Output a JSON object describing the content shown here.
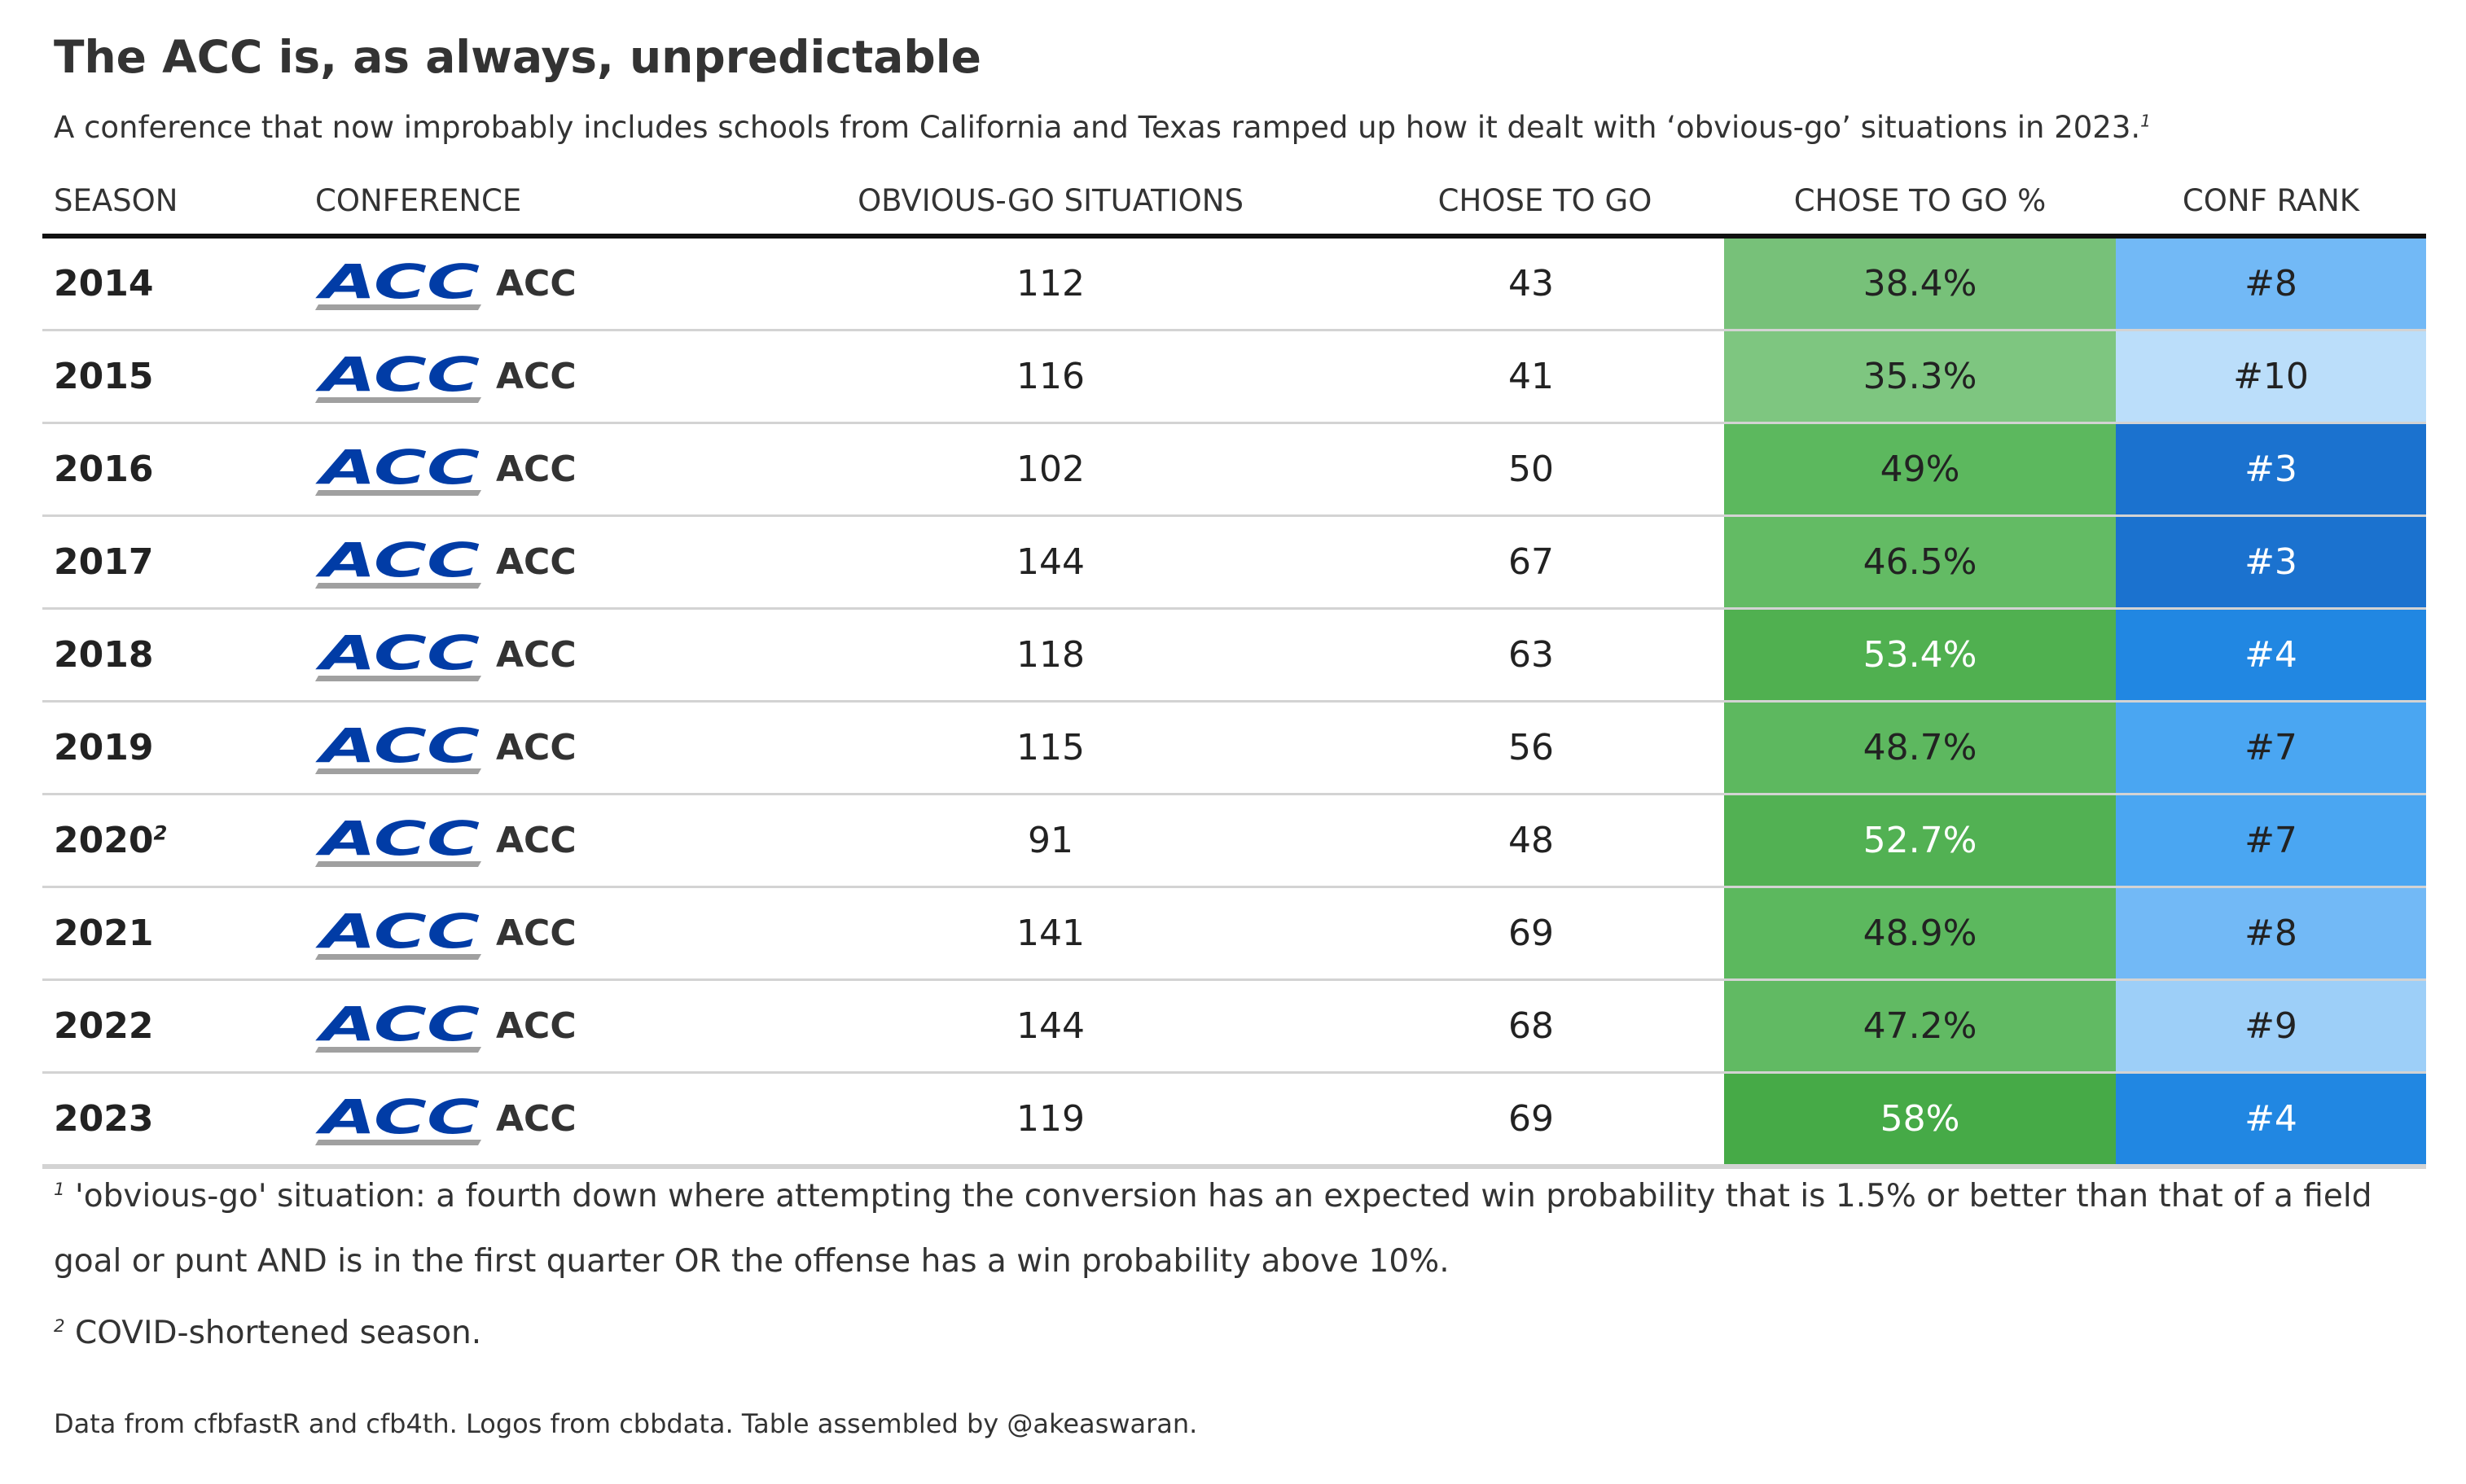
{
  "title": "The ACC is, as always, unpredictable",
  "subtitle": "A conference that now improbably includes schools from California and Texas ramped up how it dealt with ‘obvious-go’ situations in 2023.",
  "subtitle_footnote": "1",
  "columns": {
    "season": "SEASON",
    "conference": "CONFERENCE",
    "situations": "OBVIOUS-GO SITUATIONS",
    "chose": "CHOSE TO GO",
    "pct": "CHOSE TO GO %",
    "rank": "CONF RANK"
  },
  "rows": [
    {
      "season": "2014",
      "footnote": "",
      "conference": "ACC",
      "logo_text": "ACC",
      "situations": "112",
      "chose": "43",
      "pct": "38.4%",
      "rank": "#8",
      "pct_value": 38.4,
      "rank_value": 8,
      "pct_bg": "#77c179",
      "pct_fg": "#222222",
      "rank_bg": "#72b9f6",
      "rank_fg": "#222222"
    },
    {
      "season": "2015",
      "footnote": "",
      "conference": "ACC",
      "logo_text": "ACC",
      "situations": "116",
      "chose": "41",
      "pct": "35.3%",
      "rank": "#10",
      "pct_value": 35.3,
      "rank_value": 10,
      "pct_bg": "#7ec680",
      "pct_fg": "#222222",
      "rank_bg": "#bbdefa",
      "rank_fg": "#222222"
    },
    {
      "season": "2016",
      "footnote": "",
      "conference": "ACC",
      "logo_text": "ACC",
      "situations": "102",
      "chose": "50",
      "pct": "49%",
      "rank": "#3",
      "pct_value": 49,
      "rank_value": 3,
      "pct_bg": "#5cb85e",
      "pct_fg": "#222222",
      "rank_bg": "#1b72cf",
      "rank_fg": "#ffffff"
    },
    {
      "season": "2017",
      "footnote": "",
      "conference": "ACC",
      "logo_text": "ACC",
      "situations": "144",
      "chose": "67",
      "pct": "46.5%",
      "rank": "#3",
      "pct_value": 46.5,
      "rank_value": 3,
      "pct_bg": "#63bb64",
      "pct_fg": "#222222",
      "rank_bg": "#1b72cf",
      "rank_fg": "#ffffff"
    },
    {
      "season": "2018",
      "footnote": "",
      "conference": "ACC",
      "logo_text": "ACC",
      "situations": "118",
      "chose": "63",
      "pct": "53.4%",
      "rank": "#4",
      "pct_value": 53.4,
      "rank_value": 4,
      "pct_bg": "#50b050",
      "pct_fg": "#ffffff",
      "rank_bg": "#2187e2",
      "rank_fg": "#ffffff"
    },
    {
      "season": "2019",
      "footnote": "",
      "conference": "ACC",
      "logo_text": "ACC",
      "situations": "115",
      "chose": "56",
      "pct": "48.7%",
      "rank": "#7",
      "pct_value": 48.7,
      "rank_value": 7,
      "pct_bg": "#5db85f",
      "pct_fg": "#222222",
      "rank_bg": "#4aa6f2",
      "rank_fg": "#222222"
    },
    {
      "season": "2020",
      "footnote": "2",
      "conference": "ACC",
      "logo_text": "ACC",
      "situations": "91",
      "chose": "48",
      "pct": "52.7%",
      "rank": "#7",
      "pct_value": 52.7,
      "rank_value": 7,
      "pct_bg": "#52b153",
      "pct_fg": "#ffffff",
      "rank_bg": "#4aa6f2",
      "rank_fg": "#222222"
    },
    {
      "season": "2021",
      "footnote": "",
      "conference": "ACC",
      "logo_text": "ACC",
      "situations": "141",
      "chose": "69",
      "pct": "48.9%",
      "rank": "#8",
      "pct_value": 48.9,
      "rank_value": 8,
      "pct_bg": "#5cb85e",
      "pct_fg": "#222222",
      "rank_bg": "#72b9f6",
      "rank_fg": "#222222"
    },
    {
      "season": "2022",
      "footnote": "",
      "conference": "ACC",
      "logo_text": "ACC",
      "situations": "144",
      "chose": "68",
      "pct": "47.2%",
      "rank": "#9",
      "pct_value": 47.2,
      "rank_value": 9,
      "pct_bg": "#61ba63",
      "pct_fg": "#222222",
      "rank_bg": "#9dcff8",
      "rank_fg": "#222222"
    },
    {
      "season": "2023",
      "footnote": "",
      "conference": "ACC",
      "logo_text": "ACC",
      "situations": "119",
      "chose": "69",
      "pct": "58%",
      "rank": "#4",
      "pct_value": 58,
      "rank_value": 4,
      "pct_bg": "#46aa47",
      "pct_fg": "#ffffff",
      "rank_bg": "#2187e2",
      "rank_fg": "#ffffff"
    }
  ],
  "footnotes": [
    {
      "mark": "1",
      "text": "'obvious-go' situation: a fourth down where attempting the conversion has an expected win probability that is 1.5% or better than that of a field goal or punt AND is in the first quarter OR the offense has a win probability above 10%."
    },
    {
      "mark": "2",
      "text": "COVID-shortened season."
    }
  ],
  "source": "Data from cfbfastR and cfb4th. Logos from cbbdata. Table assembled by @akeaswaran.",
  "colors": {
    "logo_blue": "#013ca6",
    "logo_gray": "#a0a0a0",
    "header_rule": "#111111",
    "row_rule": "#d3d3d3"
  },
  "chart_data": {
    "type": "table",
    "title": "The ACC is, as always, unpredictable",
    "columns": [
      "SEASON",
      "CONFERENCE",
      "OBVIOUS-GO SITUATIONS",
      "CHOSE TO GO",
      "CHOSE TO GO %",
      "CONF RANK"
    ],
    "seasons": [
      "2014",
      "2015",
      "2016",
      "2017",
      "2018",
      "2019",
      "2020",
      "2021",
      "2022",
      "2023"
    ],
    "obvious_go_situations": [
      112,
      116,
      102,
      144,
      118,
      115,
      91,
      141,
      144,
      119
    ],
    "chose_to_go": [
      43,
      41,
      50,
      67,
      63,
      56,
      48,
      69,
      68,
      69
    ],
    "chose_to_go_pct": [
      38.4,
      35.3,
      49,
      46.5,
      53.4,
      48.7,
      52.7,
      48.9,
      47.2,
      58
    ],
    "conf_rank": [
      8,
      10,
      3,
      3,
      4,
      7,
      7,
      8,
      9,
      4
    ]
  }
}
